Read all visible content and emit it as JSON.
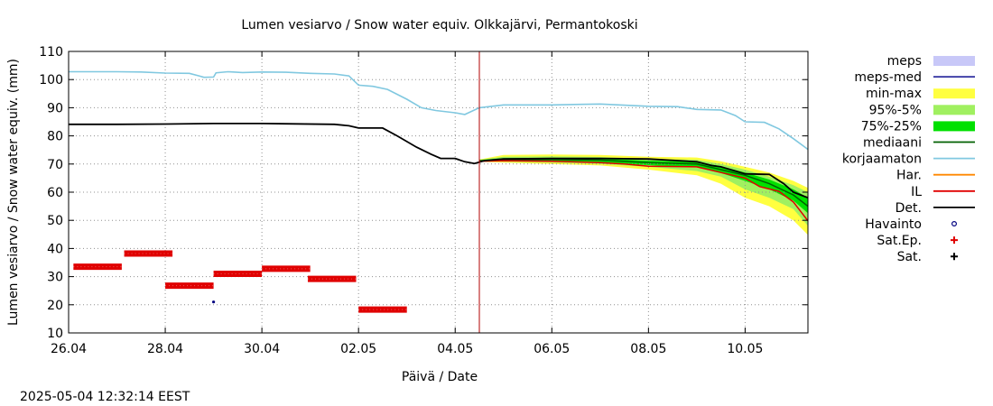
{
  "chart_data": {
    "type": "line",
    "title": "Lumen vesiarvo / Snow water equiv.  Olkkajärvi, Permantokoski",
    "xlabel": "Päivä / Date",
    "ylabel": "Lumen vesiarvo / Snow water equiv. (mm)",
    "timestamp": "2025-05-04 12:32:14 EEST",
    "xlim": [
      0,
      15.3
    ],
    "ylim": [
      10,
      110
    ],
    "yticks": [
      10,
      20,
      30,
      40,
      50,
      60,
      70,
      80,
      90,
      100,
      110
    ],
    "xticks": [
      {
        "x": 0,
        "label": "26.04"
      },
      {
        "x": 2,
        "label": "28.04"
      },
      {
        "x": 4,
        "label": "30.04"
      },
      {
        "x": 6,
        "label": "02.05"
      },
      {
        "x": 8,
        "label": "04.05"
      },
      {
        "x": 10,
        "label": "06.05"
      },
      {
        "x": 12,
        "label": "08.05"
      },
      {
        "x": 14,
        "label": "10.05"
      }
    ],
    "grid": true,
    "now_line_x": 8.5,
    "colors": {
      "meps": "#c8c8f8",
      "meps_med": "#3030a0",
      "minmax": "#ffff40",
      "p95_5": "#a0f060",
      "p75_25": "#00e000",
      "mediaani": "#006000",
      "korjaamaton": "#80c8e0",
      "har": "#ff8800",
      "il": "#e00000",
      "det": "#000000",
      "havainto": "#000080",
      "sat_ep": "#e00000",
      "sat": "#000000",
      "now_line": "#b00000"
    },
    "legend": [
      {
        "key": "meps",
        "label": "meps",
        "style": "band"
      },
      {
        "key": "meps_med",
        "label": "meps-med",
        "style": "line"
      },
      {
        "key": "minmax",
        "label": "min-max",
        "style": "band"
      },
      {
        "key": "p95_5",
        "label": "95%-5%",
        "style": "band"
      },
      {
        "key": "p75_25",
        "label": "75%-25%",
        "style": "band"
      },
      {
        "key": "mediaani",
        "label": "mediaani",
        "style": "line"
      },
      {
        "key": "korjaamaton",
        "label": "korjaamaton",
        "style": "line"
      },
      {
        "key": "har",
        "label": "Har.",
        "style": "line"
      },
      {
        "key": "il",
        "label": "IL",
        "style": "line"
      },
      {
        "key": "det",
        "label": "Det.",
        "style": "line"
      },
      {
        "key": "havainto",
        "label": "Havainto",
        "style": "circle"
      },
      {
        "key": "sat_ep",
        "label": "Sat.Ep.",
        "style": "plus"
      },
      {
        "key": "sat",
        "label": "Sat.",
        "style": "plus"
      }
    ],
    "korjaamaton": [
      [
        0,
        102.8
      ],
      [
        1,
        102.8
      ],
      [
        1.5,
        102.7
      ],
      [
        2,
        102.3
      ],
      [
        2.5,
        102.2
      ],
      [
        2.7,
        101.3
      ],
      [
        2.8,
        100.8
      ],
      [
        3,
        100.9
      ],
      [
        3.05,
        102.4
      ],
      [
        3.3,
        102.8
      ],
      [
        3.6,
        102.5
      ],
      [
        4,
        102.7
      ],
      [
        4.5,
        102.6
      ],
      [
        5,
        102.2
      ],
      [
        5.5,
        102
      ],
      [
        5.8,
        101.3
      ],
      [
        6,
        98
      ],
      [
        6.3,
        97.6
      ],
      [
        6.6,
        96.5
      ],
      [
        7,
        93
      ],
      [
        7.3,
        90
      ],
      [
        7.6,
        89
      ],
      [
        8,
        88.2
      ],
      [
        8.2,
        87.6
      ],
      [
        8.5,
        90
      ],
      [
        9,
        91
      ],
      [
        10,
        91
      ],
      [
        11,
        91.3
      ],
      [
        12,
        90.5
      ],
      [
        12.6,
        90.4
      ],
      [
        13,
        89.4
      ],
      [
        13.5,
        89.2
      ],
      [
        13.8,
        87.2
      ],
      [
        14,
        85
      ],
      [
        14.4,
        84.8
      ],
      [
        14.7,
        82.5
      ],
      [
        15,
        79
      ],
      [
        15.3,
        75.2
      ]
    ],
    "det": [
      [
        0,
        84.1
      ],
      [
        1,
        84.1
      ],
      [
        2,
        84.2
      ],
      [
        3,
        84.4
      ],
      [
        4,
        84.4
      ],
      [
        4.5,
        84.3
      ],
      [
        5.5,
        84.1
      ],
      [
        5.8,
        83.6
      ],
      [
        6,
        82.8
      ],
      [
        6.5,
        82.8
      ],
      [
        6.8,
        80
      ],
      [
        7.2,
        76
      ],
      [
        7.5,
        73.5
      ],
      [
        7.7,
        72
      ],
      [
        8,
        72
      ],
      [
        8.2,
        70.8
      ],
      [
        8.4,
        70.2
      ],
      [
        8.6,
        71.2
      ],
      [
        9,
        71.8
      ],
      [
        10,
        72
      ],
      [
        11,
        72
      ],
      [
        12,
        71.8
      ],
      [
        13,
        70.8
      ],
      [
        13.3,
        69.5
      ],
      [
        13.5,
        69
      ],
      [
        14,
        66.5
      ],
      [
        14.5,
        66.3
      ],
      [
        14.8,
        63
      ],
      [
        15,
        60
      ],
      [
        15.3,
        58
      ]
    ],
    "il": [
      [
        8.5,
        71
      ],
      [
        9,
        71.2
      ],
      [
        10,
        71
      ],
      [
        11,
        70.5
      ],
      [
        11.5,
        70
      ],
      [
        12,
        69.2
      ],
      [
        13,
        69
      ],
      [
        13.5,
        67
      ],
      [
        14,
        65
      ],
      [
        14.3,
        62
      ],
      [
        14.7,
        60.3
      ],
      [
        15,
        56.5
      ],
      [
        15.3,
        49.8
      ]
    ],
    "mediaani": [
      [
        8.5,
        71.2
      ],
      [
        10,
        71.6
      ],
      [
        11,
        71.4
      ],
      [
        12,
        70.5
      ],
      [
        13,
        70
      ],
      [
        13.5,
        68
      ],
      [
        14,
        66
      ],
      [
        14.5,
        63
      ],
      [
        15,
        59
      ],
      [
        15.3,
        55
      ]
    ],
    "minmax_upper": [
      [
        8.5,
        71.6
      ],
      [
        9,
        73.2
      ],
      [
        10,
        73.4
      ],
      [
        11,
        73.2
      ],
      [
        12,
        72.6
      ],
      [
        13,
        72.3
      ],
      [
        13.5,
        71
      ],
      [
        14,
        69
      ],
      [
        14.5,
        67
      ],
      [
        15,
        64
      ],
      [
        15.3,
        61.5
      ]
    ],
    "minmax_lower": [
      [
        8.5,
        70.8
      ],
      [
        9,
        70.5
      ],
      [
        10,
        70
      ],
      [
        11,
        69.5
      ],
      [
        12,
        68
      ],
      [
        13,
        66
      ],
      [
        13.5,
        63
      ],
      [
        14,
        58
      ],
      [
        14.5,
        55
      ],
      [
        15,
        50
      ],
      [
        15.3,
        44.8
      ]
    ],
    "p95_upper": [
      [
        8.5,
        71.5
      ],
      [
        9,
        72.6
      ],
      [
        10,
        72.7
      ],
      [
        11,
        72.5
      ],
      [
        12,
        71.8
      ],
      [
        13,
        71.5
      ],
      [
        13.5,
        70
      ],
      [
        14,
        68
      ],
      [
        14.5,
        65.5
      ],
      [
        15,
        62.5
      ],
      [
        15.3,
        60
      ]
    ],
    "p95_lower": [
      [
        8.5,
        70.9
      ],
      [
        9,
        70.8
      ],
      [
        10,
        70.5
      ],
      [
        11,
        70
      ],
      [
        12,
        69
      ],
      [
        13,
        67.5
      ],
      [
        13.5,
        65.5
      ],
      [
        14,
        61
      ],
      [
        14.5,
        58
      ],
      [
        15,
        54
      ],
      [
        15.3,
        48
      ]
    ],
    "p75_upper": [
      [
        8.5,
        71.4
      ],
      [
        9,
        72.1
      ],
      [
        10,
        72.2
      ],
      [
        11,
        72
      ],
      [
        12,
        71.2
      ],
      [
        13,
        70.8
      ],
      [
        13.5,
        69.2
      ],
      [
        14,
        67
      ],
      [
        14.5,
        64.5
      ],
      [
        15,
        61
      ],
      [
        15.3,
        58
      ]
    ],
    "p75_lower": [
      [
        8.5,
        71
      ],
      [
        9,
        71.1
      ],
      [
        10,
        70.9
      ],
      [
        11,
        70.5
      ],
      [
        12,
        69.6
      ],
      [
        13,
        68.8
      ],
      [
        13.5,
        66.8
      ],
      [
        14,
        64
      ],
      [
        14.5,
        61
      ],
      [
        15,
        57
      ],
      [
        15.3,
        52.5
      ]
    ],
    "sat_ep_segments": [
      {
        "x0": 0.1,
        "x1": 1.1,
        "y": 33.5
      },
      {
        "x0": 1.15,
        "x1": 2.15,
        "y": 38.2
      },
      {
        "x0": 2.0,
        "x1": 3.0,
        "y": 26.8
      },
      {
        "x0": 3.0,
        "x1": 4.0,
        "y": 31.0
      },
      {
        "x0": 4.0,
        "x1": 5.0,
        "y": 32.8
      },
      {
        "x0": 4.95,
        "x1": 5.95,
        "y": 29.2
      },
      {
        "x0": 6.0,
        "x1": 7.0,
        "y": 18.3
      }
    ],
    "havainto": [
      [
        3.0,
        21.0
      ]
    ]
  }
}
